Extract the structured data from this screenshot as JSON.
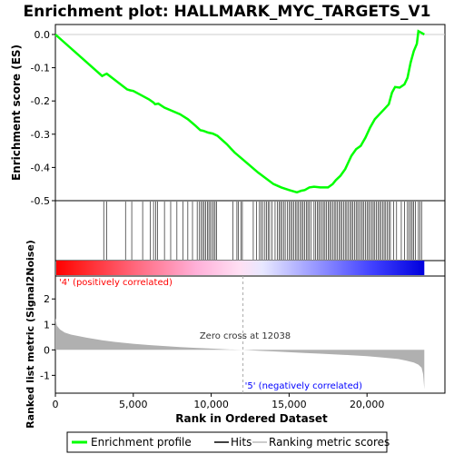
{
  "chart_data": {
    "type": "line",
    "title": "Enrichment plot: HALLMARK_MYC_TARGETS_V1",
    "top_panel": {
      "ylabel": "Enrichment score (ES)",
      "ylim": [
        -0.5,
        0.03
      ],
      "yticks": [
        "0.0",
        "-0.1",
        "-0.2",
        "-0.3",
        "-0.4",
        "-0.5"
      ],
      "series": [
        {
          "name": "Enrichment profile",
          "color": "#00ff00",
          "x": [
            0,
            3000,
            3200,
            3300,
            4600,
            4800,
            5000,
            5600,
            6000,
            6300,
            6400,
            6600,
            7000,
            8000,
            8500,
            9000,
            9300,
            9500,
            9800,
            10100,
            10400,
            11000,
            11500,
            12000,
            13000,
            14000,
            14500,
            15000,
            15500,
            15800,
            16000,
            16300,
            16600,
            17000,
            17500,
            17800,
            18000,
            18300,
            18600,
            18800,
            19000,
            19300,
            19600,
            19900,
            20200,
            20500,
            20800,
            21100,
            21400,
            21600,
            21800,
            22100,
            22400,
            22600,
            22800,
            23000,
            23200,
            23300,
            23500,
            23680
          ],
          "y": [
            0.0,
            -0.125,
            -0.12,
            -0.118,
            -0.165,
            -0.168,
            -0.17,
            -0.185,
            -0.195,
            -0.205,
            -0.21,
            -0.208,
            -0.22,
            -0.24,
            -0.255,
            -0.275,
            -0.288,
            -0.29,
            -0.295,
            -0.298,
            -0.305,
            -0.33,
            -0.355,
            -0.375,
            -0.415,
            -0.45,
            -0.46,
            -0.468,
            -0.475,
            -0.47,
            -0.468,
            -0.46,
            -0.458,
            -0.46,
            -0.46,
            -0.45,
            -0.438,
            -0.425,
            -0.405,
            -0.385,
            -0.365,
            -0.345,
            -0.335,
            -0.31,
            -0.28,
            -0.255,
            -0.24,
            -0.225,
            -0.21,
            -0.175,
            -0.158,
            -0.16,
            -0.15,
            -0.13,
            -0.085,
            -0.05,
            -0.028,
            0.01,
            0.005,
            0.0
          ]
        }
      ]
    },
    "hits_panel": {
      "name": "Hits",
      "positions": [
        3100,
        3300,
        4500,
        4900,
        5600,
        6100,
        6300,
        6450,
        6550,
        7000,
        7400,
        7800,
        8200,
        8500,
        8800,
        9100,
        9250,
        9350,
        9450,
        9550,
        9650,
        9750,
        9850,
        9950,
        10050,
        10150,
        10250,
        10350,
        11400,
        11650,
        11750,
        11900,
        12000,
        12700,
        12900,
        13100,
        13200,
        13300,
        13450,
        13550,
        13650,
        13750,
        13900,
        14100,
        14250,
        14350,
        14450,
        14550,
        14650,
        14750,
        14900,
        15000,
        15100,
        15200,
        15300,
        15400,
        15500,
        15600,
        15700,
        15800,
        15900,
        16000,
        16100,
        16200,
        16300,
        16400,
        16600,
        16700,
        16800,
        16900,
        17000,
        17100,
        17200,
        17300,
        17400,
        17500,
        17600,
        17700,
        17800,
        17900,
        18000,
        18100,
        18200,
        18300,
        18400,
        18500,
        18600,
        18700,
        18800,
        18900,
        19000,
        19100,
        19200,
        19300,
        19400,
        19500,
        19600,
        19700,
        19800,
        19900,
        20000,
        20100,
        20200,
        20300,
        20400,
        20500,
        20600,
        20700,
        20800,
        20900,
        21000,
        21100,
        21200,
        21300,
        21400,
        21500,
        21700,
        21900,
        22200,
        22400,
        22600,
        22700,
        22800,
        22900,
        23000,
        23100,
        23300,
        23400,
        23500
      ]
    },
    "ranked_panel": {
      "name": "Ranking metric scores",
      "ylabel": "Ranked list metric (Signal2Noise)",
      "ylim": [
        -1.7,
        2.9
      ],
      "yticks": [
        "2",
        "1",
        "0",
        "-1"
      ],
      "x": [
        0,
        100,
        300,
        600,
        1000,
        2000,
        3000,
        4000,
        5000,
        6000,
        7000,
        8000,
        9000,
        10000,
        11000,
        12038,
        13000,
        14000,
        15000,
        16000,
        17000,
        18000,
        19000,
        20000,
        21000,
        22000,
        22500,
        23000,
        23300,
        23500,
        23600,
        23680
      ],
      "y": [
        1.25,
        0.95,
        0.8,
        0.68,
        0.6,
        0.48,
        0.38,
        0.3,
        0.24,
        0.19,
        0.15,
        0.11,
        0.08,
        0.05,
        0.02,
        0.0,
        -0.03,
        -0.06,
        -0.09,
        -0.12,
        -0.15,
        -0.18,
        -0.21,
        -0.25,
        -0.3,
        -0.36,
        -0.42,
        -0.5,
        -0.58,
        -0.7,
        -0.95,
        -1.55
      ],
      "zero_cross_label": "Zero cross at 12038",
      "positive_label": "'4' (positively correlated)",
      "negative_label": "'5' (negatively correlated)"
    },
    "xlabel": "Rank in Ordered Dataset",
    "xlim": [
      0,
      25000
    ],
    "xticks": [
      "0",
      "5,000",
      "10,000",
      "15,000",
      "20,000"
    ],
    "legend": {
      "position": "bottom",
      "items": [
        "Enrichment profile",
        "Hits",
        "Ranking metric scores"
      ]
    },
    "colors": {
      "profile": "#00ff00",
      "positive": "#ff0000",
      "negative": "#0000ff",
      "positive_text": "#ff0000",
      "negative_text": "#0000ff",
      "ranked_fill": "#b0b0b0"
    }
  }
}
